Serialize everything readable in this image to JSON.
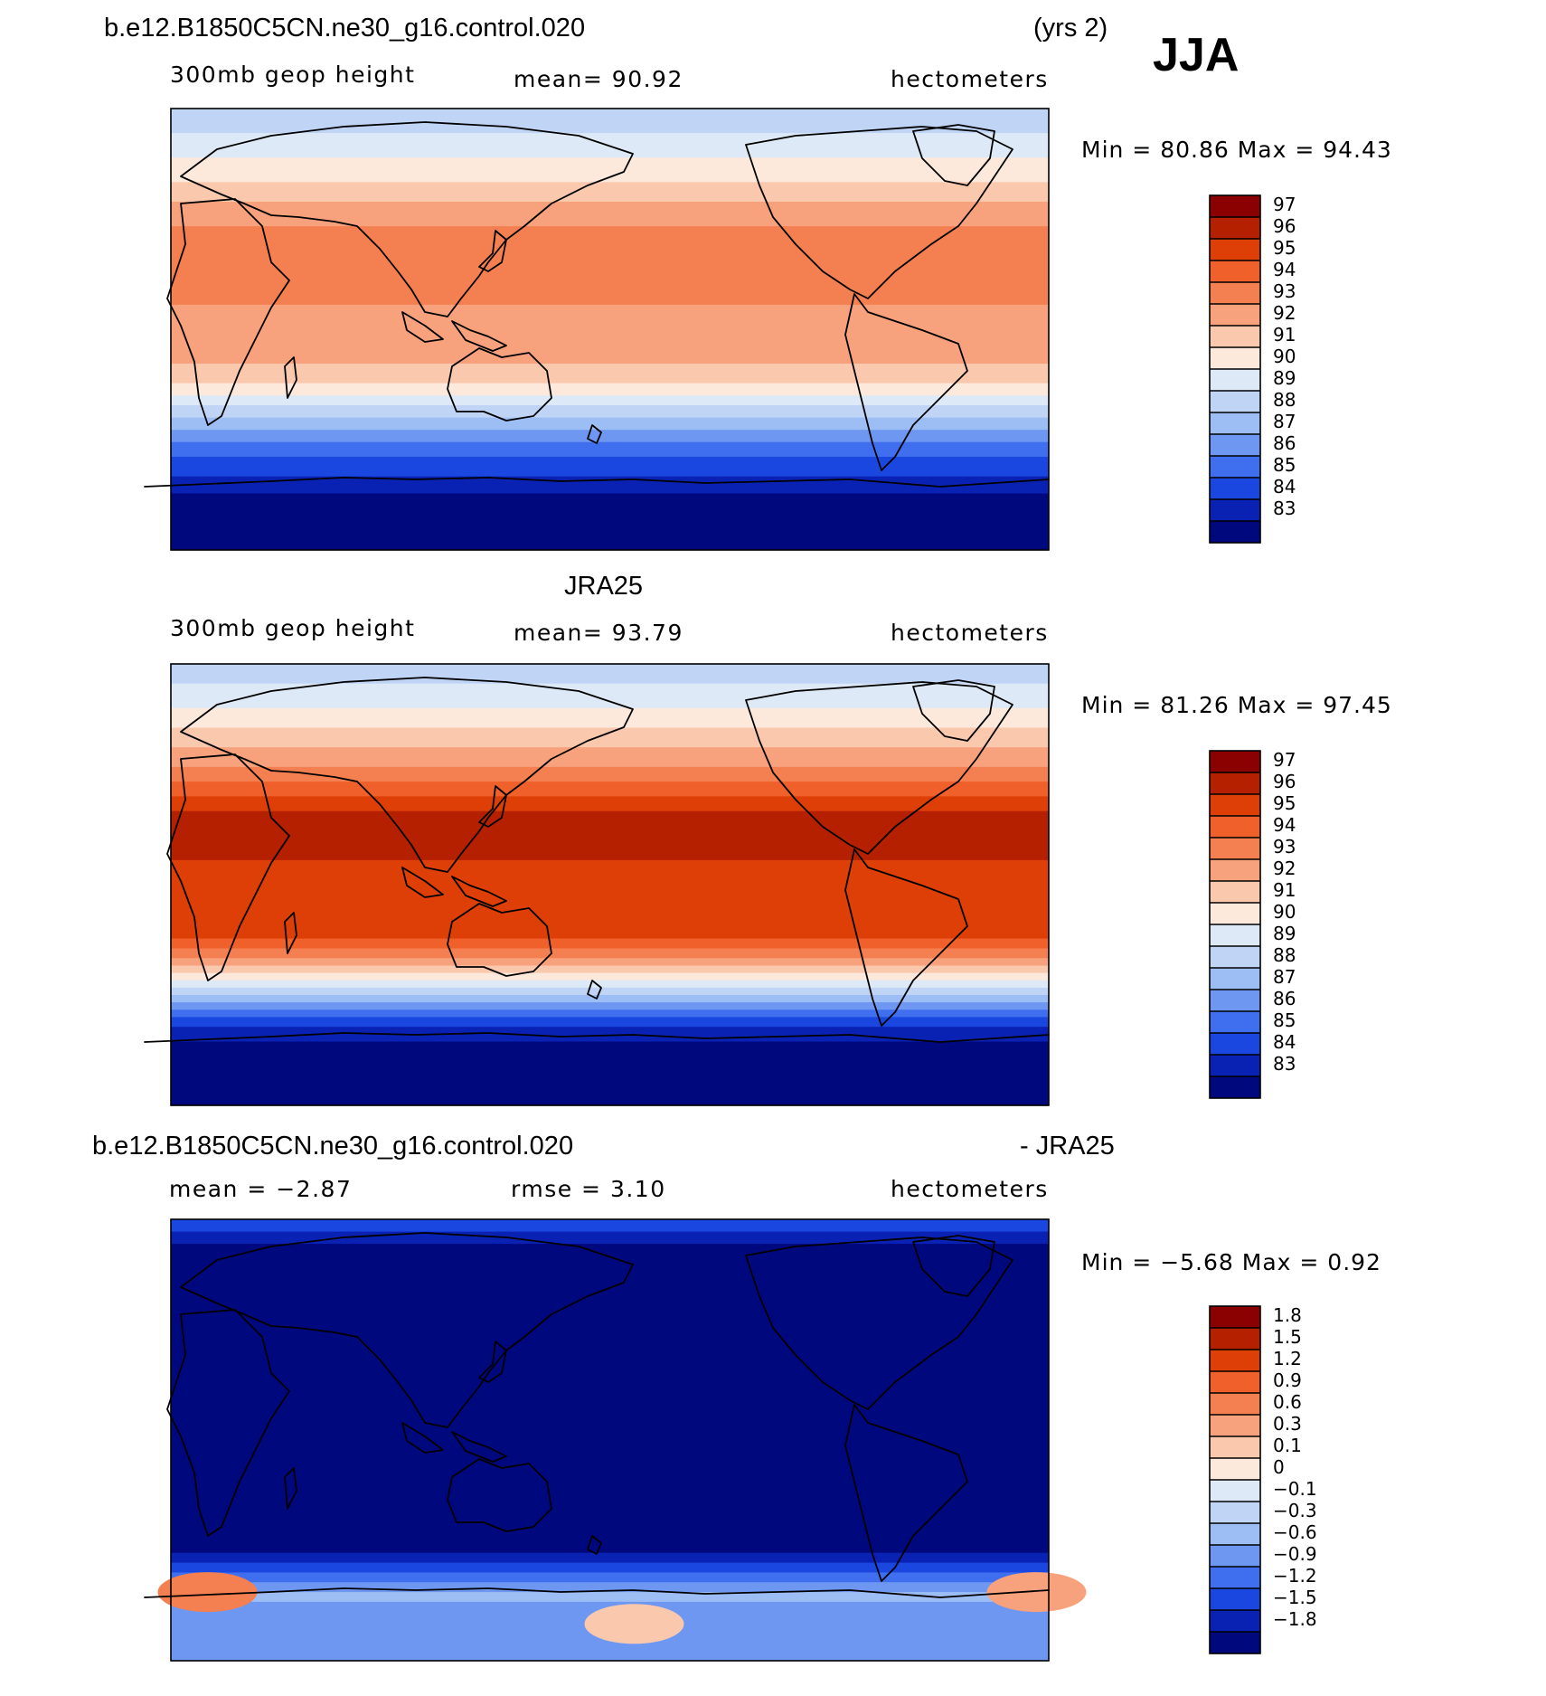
{
  "season": "JJA",
  "chart_data": [
    {
      "type": "heatmap",
      "panel": "model",
      "title": "b.e12.B1850C5CN.ne30_g16.control.020",
      "period": "(yrs 2)",
      "variable": "300mb  geop height",
      "mean_text": "mean=   90.92",
      "units": "hectometers",
      "stats_text": "Min =   80.86 Max =   94.43",
      "min": 80.86,
      "max": 94.43,
      "x": "longitude (0-360)",
      "y": "latitude (-90 to 90)",
      "colorbar": {
        "levels": [
          "97",
          "96",
          "95",
          "94",
          "93",
          "92",
          "91",
          "90",
          "89",
          "88",
          "87",
          "86",
          "85",
          "84",
          "83"
        ],
        "colors": [
          "#8b0000",
          "#b52100",
          "#dd3f07",
          "#f0602a",
          "#f48051",
          "#f7a27d",
          "#fac8ad",
          "#fde9dc",
          "#dde9f7",
          "#c0d5f6",
          "#9dbdf5",
          "#6e97f2",
          "#3f6fee",
          "#1a47e0",
          "#0a22b4",
          "#00087e"
        ]
      },
      "bands": [
        {
          "lat_n": 90,
          "lat_s": 80,
          "value": "89"
        },
        {
          "lat_n": 80,
          "lat_s": 70,
          "value": "90"
        },
        {
          "lat_n": 70,
          "lat_s": 60,
          "value": "91"
        },
        {
          "lat_n": 60,
          "lat_s": 52,
          "value": "92"
        },
        {
          "lat_n": 52,
          "lat_s": 42,
          "value": "93"
        },
        {
          "lat_n": 42,
          "lat_s": 10,
          "value": "94"
        },
        {
          "lat_n": 10,
          "lat_s": -14,
          "value": "93"
        },
        {
          "lat_n": -14,
          "lat_s": -22,
          "value": "92"
        },
        {
          "lat_n": -22,
          "lat_s": -27,
          "value": "91"
        },
        {
          "lat_n": -27,
          "lat_s": -31,
          "value": "90"
        },
        {
          "lat_n": -31,
          "lat_s": -36,
          "value": "89"
        },
        {
          "lat_n": -36,
          "lat_s": -41,
          "value": "88"
        },
        {
          "lat_n": -41,
          "lat_s": -46,
          "value": "87"
        },
        {
          "lat_n": -46,
          "lat_s": -52,
          "value": "86"
        },
        {
          "lat_n": -52,
          "lat_s": -60,
          "value": "85"
        },
        {
          "lat_n": -60,
          "lat_s": -67,
          "value": "84"
        },
        {
          "lat_n": -67,
          "lat_s": -90,
          "value": "83"
        }
      ]
    },
    {
      "type": "heatmap",
      "panel": "observations",
      "title": "JRA25",
      "variable": "300mb  geop height",
      "mean_text": "mean=   93.79",
      "units": "hectometers",
      "stats_text": "Min =   81.26 Max =   97.45",
      "min": 81.26,
      "max": 97.45,
      "x": "longitude (0-360)",
      "y": "latitude (-90 to 90)",
      "colorbar": {
        "levels": [
          "97",
          "96",
          "95",
          "94",
          "93",
          "92",
          "91",
          "90",
          "89",
          "88",
          "87",
          "86",
          "85",
          "84",
          "83"
        ],
        "colors": [
          "#8b0000",
          "#b52100",
          "#dd3f07",
          "#f0602a",
          "#f48051",
          "#f7a27d",
          "#fac8ad",
          "#fde9dc",
          "#dde9f7",
          "#c0d5f6",
          "#9dbdf5",
          "#6e97f2",
          "#3f6fee",
          "#1a47e0",
          "#0a22b4",
          "#00087e"
        ]
      },
      "bands": [
        {
          "lat_n": 90,
          "lat_s": 82,
          "value": "89"
        },
        {
          "lat_n": 82,
          "lat_s": 72,
          "value": "90"
        },
        {
          "lat_n": 72,
          "lat_s": 64,
          "value": "91"
        },
        {
          "lat_n": 64,
          "lat_s": 56,
          "value": "92"
        },
        {
          "lat_n": 56,
          "lat_s": 48,
          "value": "93"
        },
        {
          "lat_n": 48,
          "lat_s": 42,
          "value": "94"
        },
        {
          "lat_n": 42,
          "lat_s": 36,
          "value": "95"
        },
        {
          "lat_n": 36,
          "lat_s": 30,
          "value": "96"
        },
        {
          "lat_n": 30,
          "lat_s": 10,
          "value": "97"
        },
        {
          "lat_n": 10,
          "lat_s": -22,
          "value": "96"
        },
        {
          "lat_n": -22,
          "lat_s": -26,
          "value": "95"
        },
        {
          "lat_n": -26,
          "lat_s": -30,
          "value": "94"
        },
        {
          "lat_n": -30,
          "lat_s": -33,
          "value": "93"
        },
        {
          "lat_n": -33,
          "lat_s": -36,
          "value": "92"
        },
        {
          "lat_n": -36,
          "lat_s": -39,
          "value": "91"
        },
        {
          "lat_n": -39,
          "lat_s": -42,
          "value": "90"
        },
        {
          "lat_n": -42,
          "lat_s": -45,
          "value": "89"
        },
        {
          "lat_n": -45,
          "lat_s": -48,
          "value": "88"
        },
        {
          "lat_n": -48,
          "lat_s": -51,
          "value": "87"
        },
        {
          "lat_n": -51,
          "lat_s": -54,
          "value": "86"
        },
        {
          "lat_n": -54,
          "lat_s": -58,
          "value": "85"
        },
        {
          "lat_n": -58,
          "lat_s": -64,
          "value": "84"
        },
        {
          "lat_n": -64,
          "lat_s": -90,
          "value": "83"
        }
      ]
    },
    {
      "type": "heatmap",
      "panel": "difference",
      "title": "b.e12.B1850C5CN.ne30_g16.control.020",
      "title_suffix": "- JRA25",
      "mean_text": "mean =   −2.87",
      "rmse_text": "rmse =    3.10",
      "units": "hectometers",
      "stats_text": "Min =   −5.68 Max =    0.92",
      "min": -5.68,
      "max": 0.92,
      "x": "longitude (0-360)",
      "y": "latitude (-90 to 90)",
      "colorbar": {
        "levels": [
          "1.8",
          "1.5",
          "1.2",
          "0.9",
          "0.6",
          "0.3",
          "0.1",
          "0",
          "−0.1",
          "−0.3",
          "−0.6",
          "−0.9",
          "−1.2",
          "−1.5",
          "−1.8"
        ],
        "colors": [
          "#8b0000",
          "#b52100",
          "#dd3f07",
          "#f0602a",
          "#f48051",
          "#f7a27d",
          "#fac8ad",
          "#fde9dc",
          "#dde9f7",
          "#c0d5f6",
          "#9dbdf5",
          "#6e97f2",
          "#3f6fee",
          "#1a47e0",
          "#0a22b4",
          "#00087e"
        ]
      },
      "bands": [
        {
          "lat_n": 90,
          "lat_s": 85,
          "value": "−1.2"
        },
        {
          "lat_n": 85,
          "lat_s": 80,
          "value": "−1.5"
        },
        {
          "lat_n": 80,
          "lat_s": 74,
          "value": "−1.8"
        },
        {
          "lat_n": 74,
          "lat_s": -46,
          "value": "< −1.8"
        },
        {
          "lat_n": -46,
          "lat_s": -50,
          "value": "−1.5"
        },
        {
          "lat_n": -50,
          "lat_s": -54,
          "value": "−1.2"
        },
        {
          "lat_n": -54,
          "lat_s": -58,
          "value": "−0.9"
        },
        {
          "lat_n": -58,
          "lat_s": -62,
          "value": "−0.6"
        },
        {
          "lat_n": -62,
          "lat_s": -66,
          "value": "−0.3"
        },
        {
          "lat_n": -66,
          "lat_s": -90,
          "value": "−0.6"
        }
      ],
      "anomalies": [
        {
          "lon": 15,
          "lat": -62,
          "value": "0.9"
        },
        {
          "lon": 190,
          "lat": -75,
          "value": "0.3"
        },
        {
          "lon": 355,
          "lat": -62,
          "value": "0.6"
        }
      ]
    }
  ]
}
